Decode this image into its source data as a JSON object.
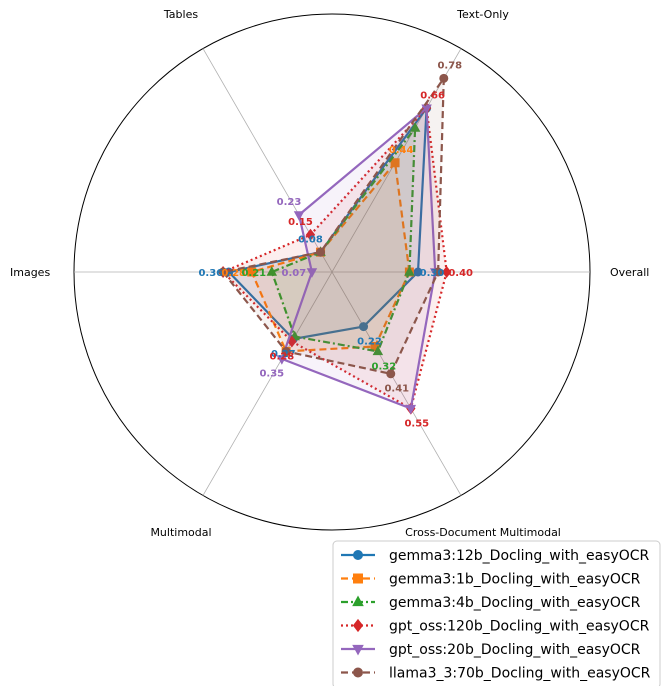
{
  "chart_data": {
    "type": "radar",
    "title": "",
    "axes": [
      "Overall",
      "Text-Only",
      "Tables",
      "Images",
      "Multimodal",
      "Cross-Document Multimodal"
    ],
    "rmax": 0.9,
    "grid": true,
    "legend_position": "bottom-right",
    "series": [
      {
        "name": "gemma3:12b_Docling_with_easyOCR",
        "color": "#1f77b4",
        "linestyle": "solid",
        "marker": "circle",
        "values": [
          0.3,
          0.66,
          0.08,
          0.36,
          0.27,
          0.22
        ],
        "labels": {
          "0": "0.30",
          "2": "0.08",
          "3": "0.36",
          "4": "0.27",
          "5": "0.22"
        }
      },
      {
        "name": "gemma3:1b_Docling_with_easyOCR",
        "color": "#ff7f0e",
        "linestyle": "dashed",
        "marker": "square",
        "values": [
          0.27,
          0.44,
          0.08,
          0.28,
          0.32,
          0.3
        ],
        "labels": {
          "1": "0.44",
          "3": "0.28"
        }
      },
      {
        "name": "gemma3:4b_Docling_with_easyOCR",
        "color": "#2ca02c",
        "linestyle": "dashdot",
        "marker": "triangle",
        "values": [
          0.27,
          0.58,
          0.08,
          0.21,
          0.26,
          0.32
        ],
        "labels": {
          "3": "0.21",
          "5": "0.32"
        }
      },
      {
        "name": "gpt_oss:120b_Docling_with_easyOCR",
        "color": "#d62728",
        "linestyle": "dotted",
        "marker": "diamond",
        "values": [
          0.4,
          0.66,
          0.15,
          0.38,
          0.28,
          0.55
        ],
        "labels": {
          "0": "0.40",
          "1": "0.66",
          "2": "0.15",
          "4": "0.28",
          "5": "0.55"
        }
      },
      {
        "name": "gpt_oss:20b_Docling_with_easyOCR",
        "color": "#9467bd",
        "linestyle": "solid",
        "marker": "triangle-down",
        "values": [
          0.36,
          0.66,
          0.23,
          0.07,
          0.35,
          0.55
        ],
        "labels": {
          "2": "0.23",
          "3": "0.07",
          "4": "0.35"
        }
      },
      {
        "name": "llama3_3:70b_Docling_with_easyOCR",
        "color": "#8c564b",
        "linestyle": "dashed",
        "marker": "circle",
        "values": [
          0.37,
          0.78,
          0.08,
          0.38,
          0.32,
          0.41
        ],
        "labels": {
          "1": "0.78",
          "5": "0.41"
        }
      }
    ]
  }
}
